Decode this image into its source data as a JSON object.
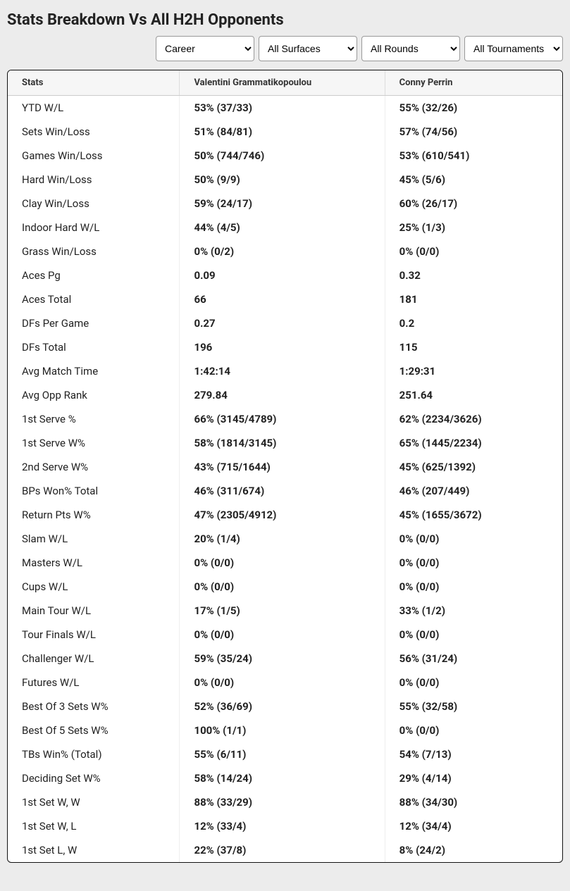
{
  "title": "Stats Breakdown Vs All H2H Opponents",
  "filters": {
    "period": {
      "selected": "Career",
      "options": [
        "Career"
      ]
    },
    "surface": {
      "selected": "All Surfaces",
      "options": [
        "All Surfaces"
      ]
    },
    "round": {
      "selected": "All Rounds",
      "options": [
        "All Rounds"
      ]
    },
    "tournament": {
      "selected": "All Tournaments",
      "options": [
        "All Tournaments"
      ]
    }
  },
  "columns": {
    "stats": "Stats",
    "player1": "Valentini Grammatikopoulou",
    "player2": "Conny Perrin"
  },
  "rows": [
    {
      "stat": "YTD W/L",
      "p1": "53% (37/33)",
      "p2": "55% (32/26)"
    },
    {
      "stat": "Sets Win/Loss",
      "p1": "51% (84/81)",
      "p2": "57% (74/56)"
    },
    {
      "stat": "Games Win/Loss",
      "p1": "50% (744/746)",
      "p2": "53% (610/541)"
    },
    {
      "stat": "Hard Win/Loss",
      "p1": "50% (9/9)",
      "p2": "45% (5/6)"
    },
    {
      "stat": "Clay Win/Loss",
      "p1": "59% (24/17)",
      "p2": "60% (26/17)"
    },
    {
      "stat": "Indoor Hard W/L",
      "p1": "44% (4/5)",
      "p2": "25% (1/3)"
    },
    {
      "stat": "Grass Win/Loss",
      "p1": "0% (0/2)",
      "p2": "0% (0/0)"
    },
    {
      "stat": "Aces Pg",
      "p1": "0.09",
      "p2": "0.32"
    },
    {
      "stat": "Aces Total",
      "p1": "66",
      "p2": "181"
    },
    {
      "stat": "DFs Per Game",
      "p1": "0.27",
      "p2": "0.2"
    },
    {
      "stat": "DFs Total",
      "p1": "196",
      "p2": "115"
    },
    {
      "stat": "Avg Match Time",
      "p1": "1:42:14",
      "p2": "1:29:31"
    },
    {
      "stat": "Avg Opp Rank",
      "p1": "279.84",
      "p2": "251.64"
    },
    {
      "stat": "1st Serve %",
      "p1": "66% (3145/4789)",
      "p2": "62% (2234/3626)"
    },
    {
      "stat": "1st Serve W%",
      "p1": "58% (1814/3145)",
      "p2": "65% (1445/2234)"
    },
    {
      "stat": "2nd Serve W%",
      "p1": "43% (715/1644)",
      "p2": "45% (625/1392)"
    },
    {
      "stat": "BPs Won% Total",
      "p1": "46% (311/674)",
      "p2": "46% (207/449)"
    },
    {
      "stat": "Return Pts W%",
      "p1": "47% (2305/4912)",
      "p2": "45% (1655/3672)"
    },
    {
      "stat": "Slam W/L",
      "p1": "20% (1/4)",
      "p2": "0% (0/0)"
    },
    {
      "stat": "Masters W/L",
      "p1": "0% (0/0)",
      "p2": "0% (0/0)"
    },
    {
      "stat": "Cups W/L",
      "p1": "0% (0/0)",
      "p2": "0% (0/0)"
    },
    {
      "stat": "Main Tour W/L",
      "p1": "17% (1/5)",
      "p2": "33% (1/2)"
    },
    {
      "stat": "Tour Finals W/L",
      "p1": "0% (0/0)",
      "p2": "0% (0/0)"
    },
    {
      "stat": "Challenger W/L",
      "p1": "59% (35/24)",
      "p2": "56% (31/24)"
    },
    {
      "stat": "Futures W/L",
      "p1": "0% (0/0)",
      "p2": "0% (0/0)"
    },
    {
      "stat": "Best Of 3 Sets W%",
      "p1": "52% (36/69)",
      "p2": "55% (32/58)"
    },
    {
      "stat": "Best Of 5 Sets W%",
      "p1": "100% (1/1)",
      "p2": "0% (0/0)"
    },
    {
      "stat": "TBs Win% (Total)",
      "p1": "55% (6/11)",
      "p2": "54% (7/13)"
    },
    {
      "stat": "Deciding Set W%",
      "p1": "58% (14/24)",
      "p2": "29% (4/14)"
    },
    {
      "stat": "1st Set W, W",
      "p1": "88% (33/29)",
      "p2": "88% (34/30)"
    },
    {
      "stat": "1st Set W, L",
      "p1": "12% (33/4)",
      "p2": "12% (34/4)"
    },
    {
      "stat": "1st Set L, W",
      "p1": "22% (37/8)",
      "p2": "8% (24/2)"
    }
  ]
}
